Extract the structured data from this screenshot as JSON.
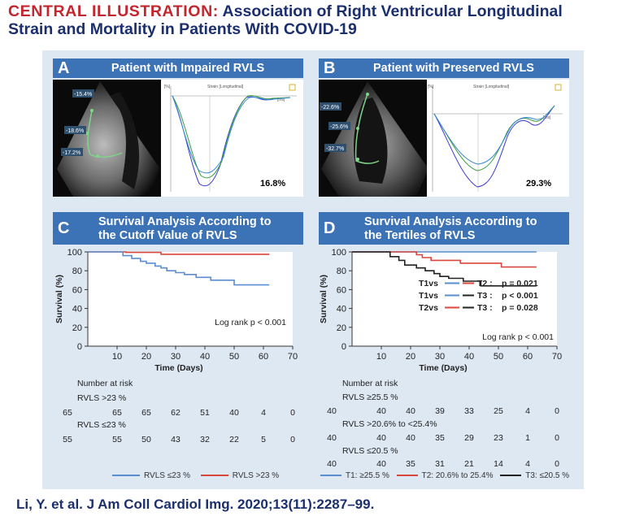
{
  "header": {
    "title_keyword": "CENTRAL ILLUSTRATION:",
    "title_line1": " Association of Right Ventricular Longitudinal",
    "title_line2": "Strain and Mortality in Patients With COVID-19"
  },
  "panels": {
    "A": {
      "letter": "A",
      "title": "Patient with Impaired RVLS",
      "value": "16.8%",
      "segments": [
        "-15.4%",
        "-18.6%",
        "-17.2%"
      ],
      "plot_header": "[%]",
      "plot_title": "Strain [Longitudinal]",
      "time_unit": "[ms]"
    },
    "B": {
      "letter": "B",
      "title": "Patient with Preserved RVLS",
      "value": "29.3%",
      "segments": [
        "-22.6%",
        "-25.6%",
        "-32.7%"
      ],
      "plot_header": "[%]",
      "plot_title": "Strain [Longitudinal]",
      "time_unit": "[ms]"
    },
    "C": {
      "letter": "C",
      "title_line1": "Survival Analysis According to",
      "title_line2": "the Cutoff Value of RVLS"
    },
    "D": {
      "letter": "D",
      "title_line1": "Survival Analysis According to",
      "title_line2": "the Tertiles of RVLS"
    }
  },
  "colors": {
    "blue": "#5b8ed1",
    "red": "#d9463b",
    "black": "#222222",
    "panel_header": "#3c72b6",
    "frame": "#dde8f3"
  },
  "chart_data": [
    {
      "id": "C",
      "type": "line",
      "xlabel": "Time (Days)",
      "ylabel": "Survival (%)",
      "xlim": [
        0,
        70
      ],
      "ylim": [
        0,
        100
      ],
      "xticks": [
        10,
        20,
        30,
        40,
        50,
        60,
        70
      ],
      "yticks": [
        0,
        20,
        40,
        60,
        80,
        100
      ],
      "annotation": "Log rank p < 0.001",
      "series": [
        {
          "name": "RVLS >23 %",
          "color": "#d9463b",
          "steps": [
            [
              0,
              100
            ],
            [
              13,
              100
            ],
            [
              13,
              99.5
            ],
            [
              25,
              99.5
            ],
            [
              25,
              97.5
            ],
            [
              62,
              97.5
            ]
          ]
        },
        {
          "name": "RVLS ≤23 %",
          "color": "#5b8ed1",
          "steps": [
            [
              0,
              100
            ],
            [
              12,
              100
            ],
            [
              12,
              96
            ],
            [
              15,
              96
            ],
            [
              15,
              93
            ],
            [
              18,
              93
            ],
            [
              18,
              90
            ],
            [
              20,
              90
            ],
            [
              20,
              88
            ],
            [
              23,
              88
            ],
            [
              23,
              85
            ],
            [
              25,
              85
            ],
            [
              25,
              83
            ],
            [
              27,
              83
            ],
            [
              27,
              80
            ],
            [
              30,
              80
            ],
            [
              30,
              78
            ],
            [
              33,
              78
            ],
            [
              33,
              76
            ],
            [
              37,
              76
            ],
            [
              37,
              73
            ],
            [
              42,
              73
            ],
            [
              42,
              70
            ],
            [
              50,
              70
            ],
            [
              50,
              65
            ],
            [
              62,
              65
            ]
          ]
        }
      ],
      "risk_table": {
        "header": "Number at risk",
        "groups": [
          {
            "label": "RVLS >23 %",
            "counts": [
              "65",
              "65",
              "65",
              "62",
              "51",
              "40",
              "4",
              "0"
            ]
          },
          {
            "label": "RVLS ≤23 %",
            "counts": [
              "55",
              "55",
              "50",
              "43",
              "32",
              "22",
              "5",
              "0"
            ]
          }
        ]
      },
      "legend": [
        "RVLS ≤23 %",
        "RVLS >23 %"
      ]
    },
    {
      "id": "D",
      "type": "line",
      "xlabel": "Time (Days)",
      "ylabel": "Survival (%)",
      "xlim": [
        0,
        70
      ],
      "ylim": [
        0,
        100
      ],
      "xticks": [
        10,
        20,
        30,
        40,
        50,
        60,
        70
      ],
      "yticks": [
        0,
        20,
        40,
        60,
        80,
        100
      ],
      "annotation": "Log rank p < 0.001",
      "comparisons": [
        {
          "a": "T1vs",
          "b": "T2",
          "p": "p = 0.021"
        },
        {
          "a": "T1vs",
          "b": "T3",
          "p": "p < 0.001"
        },
        {
          "a": "T2vs",
          "b": "T3",
          "p": "p = 0.028"
        }
      ],
      "series": [
        {
          "name": "T1: ≥25.5 %",
          "color": "#5b8ed1",
          "steps": [
            [
              0,
              100
            ],
            [
              63,
              100
            ]
          ]
        },
        {
          "name": "T2: 20.6% to 25.4%",
          "color": "#d9463b",
          "steps": [
            [
              0,
              100
            ],
            [
              22,
              100
            ],
            [
              22,
              97
            ],
            [
              24,
              97
            ],
            [
              24,
              94
            ],
            [
              27,
              94
            ],
            [
              27,
              91
            ],
            [
              37,
              91
            ],
            [
              37,
              88
            ],
            [
              51,
              88
            ],
            [
              51,
              84
            ],
            [
              63,
              84
            ]
          ]
        },
        {
          "name": "T3: ≤20.5 %",
          "color": "#222222",
          "steps": [
            [
              0,
              100
            ],
            [
              13,
              100
            ],
            [
              13,
              95
            ],
            [
              16,
              95
            ],
            [
              16,
              91
            ],
            [
              18,
              91
            ],
            [
              18,
              86
            ],
            [
              22,
              86
            ],
            [
              22,
              83
            ],
            [
              25,
              83
            ],
            [
              25,
              80
            ],
            [
              28,
              80
            ],
            [
              28,
              77
            ],
            [
              30,
              77
            ],
            [
              30,
              74
            ],
            [
              33,
              74
            ],
            [
              33,
              72
            ],
            [
              38,
              72
            ],
            [
              38,
              69
            ],
            [
              44,
              69
            ],
            [
              44,
              64
            ],
            [
              63,
              64
            ]
          ]
        }
      ],
      "risk_table": {
        "header": "Number at risk",
        "groups": [
          {
            "label": "RVLS ≥25.5 %",
            "counts": [
              "40",
              "40",
              "40",
              "39",
              "33",
              "25",
              "4",
              "0"
            ]
          },
          {
            "label": "RVLS >20.6% to <25.4%",
            "counts": [
              "40",
              "40",
              "40",
              "35",
              "29",
              "23",
              "1",
              "0"
            ]
          },
          {
            "label": "RVLS ≤20.5 %",
            "counts": [
              "40",
              "40",
              "35",
              "31",
              "21",
              "14",
              "4",
              "0"
            ]
          }
        ]
      },
      "legend": [
        "T1: ≥25.5 %",
        "T2: 20.6% to 25.4%",
        "T3: ≤20.5 %"
      ]
    }
  ],
  "citation": "Li, Y. et al. J Am Coll Cardiol Img. 2020;13(11):2287–99."
}
